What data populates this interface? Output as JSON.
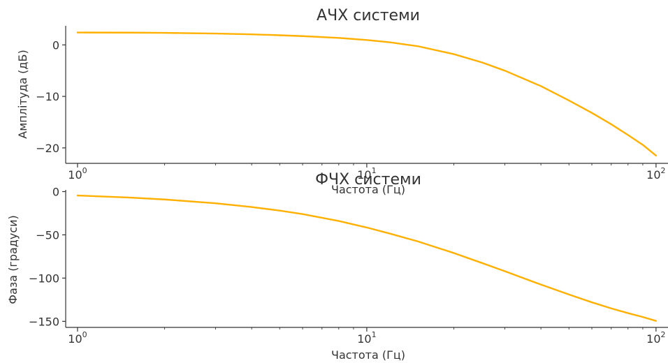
{
  "colors": {
    "series": "#FFB000",
    "axis": "#333333"
  },
  "chart_data": [
    {
      "type": "line",
      "title": "АЧХ системи",
      "xlabel": "Частота (Гц)",
      "ylabel": "Амплітуда (дБ)",
      "xscale": "log",
      "xlim": [
        0.91,
        110
      ],
      "ylim": [
        -23,
        3.7
      ],
      "yticks": [
        0,
        -10,
        -20
      ],
      "ytick_labels": [
        "0",
        "−10",
        "−20"
      ],
      "xticks": [
        1,
        10,
        100
      ],
      "xtick_labels": [
        {
          "base": "10",
          "exp": "0"
        },
        {
          "base": "10",
          "exp": "1"
        },
        {
          "base": "10",
          "exp": "2"
        }
      ],
      "grid": false,
      "legend": "none",
      "series": [
        {
          "x": [
            1,
            1.5,
            2,
            3,
            4,
            5,
            6,
            8,
            10,
            12,
            15,
            20,
            25,
            30,
            40,
            50,
            60,
            70,
            80,
            90,
            100
          ],
          "values": [
            2.4,
            2.38,
            2.33,
            2.2,
            2.05,
            1.87,
            1.7,
            1.35,
            0.95,
            0.5,
            -0.25,
            -1.8,
            -3.4,
            -5.0,
            -8.0,
            -10.8,
            -13.2,
            -15.4,
            -17.5,
            -19.4,
            -21.5
          ]
        }
      ]
    },
    {
      "type": "line",
      "title": "ФЧХ системи",
      "xlabel": "Частота (Гц)",
      "ylabel": "Фаза (градуси)",
      "xscale": "log",
      "xlim": [
        0.91,
        110
      ],
      "ylim": [
        -157,
        2
      ],
      "yticks": [
        0,
        -50,
        -100,
        -150
      ],
      "ytick_labels": [
        "0",
        "−50",
        "−100",
        "−150"
      ],
      "xticks": [
        1,
        10,
        100
      ],
      "xtick_labels": [
        {
          "base": "10",
          "exp": "0"
        },
        {
          "base": "10",
          "exp": "1"
        },
        {
          "base": "10",
          "exp": "2"
        }
      ],
      "grid": false,
      "legend": "none",
      "series": [
        {
          "x": [
            1,
            1.5,
            2,
            3,
            4,
            5,
            6,
            8,
            10,
            12,
            15,
            20,
            25,
            30,
            40,
            50,
            60,
            70,
            80,
            90,
            100
          ],
          "values": [
            -4.5,
            -6.8,
            -9.1,
            -13.5,
            -17.8,
            -22,
            -26,
            -34,
            -41.5,
            -48.5,
            -57.5,
            -71,
            -82.5,
            -92,
            -107.5,
            -119,
            -128,
            -135,
            -140.5,
            -145,
            -149.5
          ]
        }
      ]
    }
  ]
}
